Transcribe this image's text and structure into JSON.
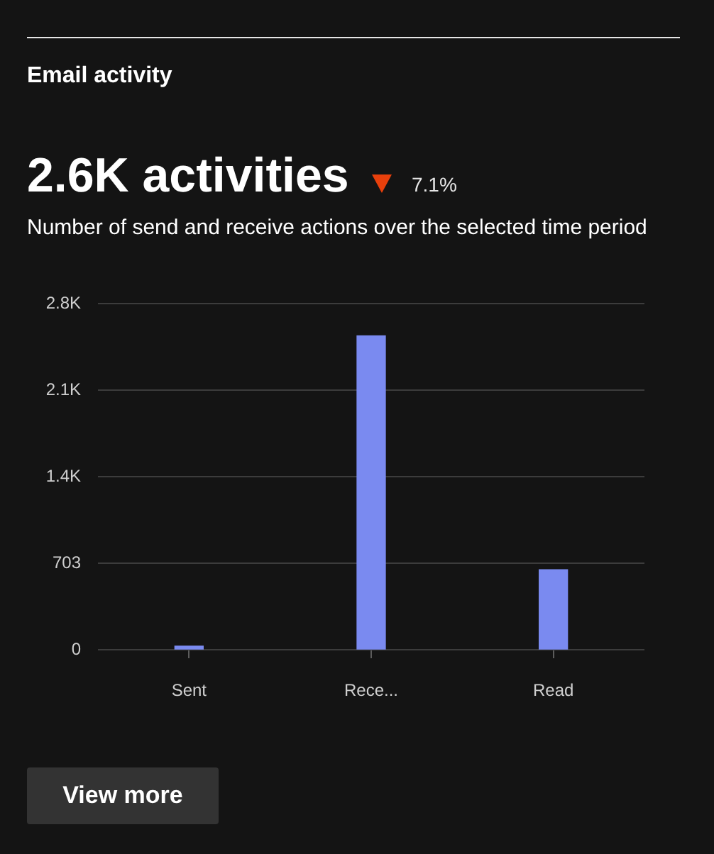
{
  "chart_data": {
    "type": "bar",
    "title": "Email activity",
    "subtitle": "Number of send and receive actions over the selected time period",
    "annotations": [
      "2.6K activities",
      "7.1%",
      "View more"
    ],
    "categories": [
      "Sent",
      "Rece...",
      "Read"
    ],
    "values": [
      30,
      2550,
      650
    ],
    "color": "#7a8af0",
    "ylim": [
      0,
      2812
    ],
    "yticks": [
      0,
      703,
      {
        "value": 1406,
        "label": "1.4K"
      },
      {
        "value": 2109,
        "label": "2.1K"
      },
      {
        "value": 2812,
        "label": "2.8K"
      }
    ],
    "grid": "y"
  }
}
